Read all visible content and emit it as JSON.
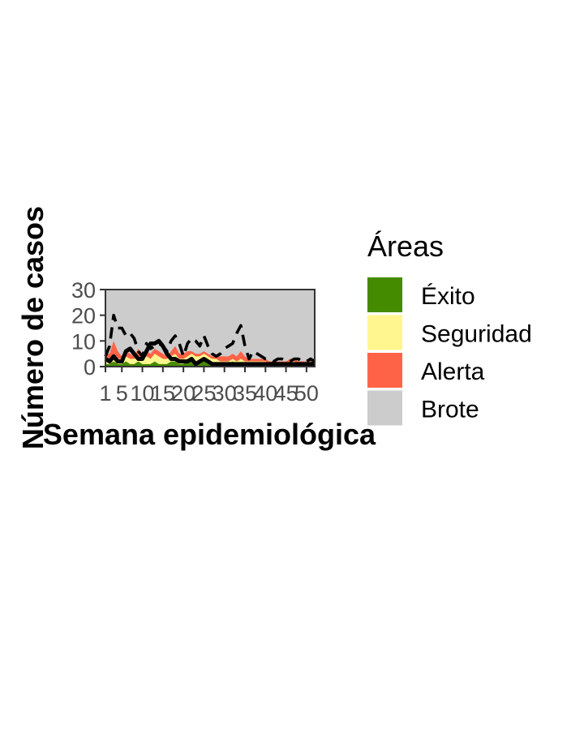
{
  "chart_data": {
    "type": "area",
    "xlabel": "Semana epidemiológica",
    "ylabel": "Número de casos",
    "xlim": [
      1,
      52
    ],
    "ylim": [
      0,
      30
    ],
    "x_ticks": [
      1,
      5,
      10,
      15,
      20,
      25,
      30,
      35,
      40,
      45,
      50
    ],
    "y_ticks": [
      0,
      10,
      20,
      30
    ],
    "legend": {
      "title": "Áreas",
      "position": "right",
      "entries": [
        {
          "label": "Éxito",
          "color": "#458B00"
        },
        {
          "label": "Seguridad",
          "color": "#FFF68F"
        },
        {
          "label": "Alerta",
          "color": "#FF6347"
        },
        {
          "label": "Brote",
          "color": "#CCCCCC"
        }
      ]
    },
    "x": [
      1,
      2,
      3,
      4,
      5,
      6,
      7,
      8,
      9,
      10,
      11,
      12,
      13,
      14,
      15,
      16,
      17,
      18,
      19,
      20,
      21,
      22,
      23,
      24,
      25,
      26,
      27,
      28,
      29,
      30,
      31,
      32,
      33,
      34,
      35,
      36,
      37,
      38,
      39,
      40,
      41,
      42,
      43,
      44,
      45,
      46,
      47,
      48,
      49,
      50,
      51,
      52
    ],
    "bands": {
      "exito": [
        1,
        1,
        2,
        1,
        1,
        2,
        1,
        1,
        2,
        1,
        1,
        1,
        2,
        1,
        1,
        1,
        2,
        2,
        1,
        1,
        3,
        2,
        1,
        2,
        3,
        2,
        1,
        1,
        1,
        1,
        1,
        2,
        1,
        1,
        1,
        1,
        1,
        1,
        1,
        1,
        1,
        1,
        1,
        1,
        1,
        1,
        1,
        1,
        1,
        1,
        2,
        2
      ],
      "seguridad": [
        3,
        3,
        4,
        3,
        3,
        4,
        3,
        3,
        4,
        3,
        4,
        3,
        5,
        4,
        3,
        3,
        4,
        5,
        3,
        3,
        4,
        5,
        4,
        4,
        5,
        4,
        3,
        3,
        2,
        2,
        2,
        3,
        2,
        3,
        2,
        2,
        2,
        2,
        2,
        2,
        1,
        1,
        1,
        1,
        1,
        2,
        2,
        1,
        1,
        1,
        2,
        2
      ],
      "alerta": [
        5,
        5,
        10,
        6,
        4,
        6,
        5,
        4,
        7,
        5,
        6,
        5,
        7,
        6,
        5,
        4,
        6,
        8,
        5,
        5,
        6,
        6,
        5,
        5,
        6,
        5,
        4,
        4,
        4,
        4,
        4,
        5,
        4,
        6,
        4,
        3,
        3,
        3,
        3,
        3,
        2,
        2,
        2,
        2,
        2,
        3,
        3,
        2,
        2,
        2,
        3,
        3
      ]
    },
    "series": [
      {
        "style": "dashed",
        "values": [
          4,
          8,
          20,
          15,
          15,
          12,
          13,
          11,
          6,
          4,
          9,
          7,
          8,
          9,
          8,
          6,
          10,
          12,
          9,
          4,
          9,
          11,
          10,
          8,
          12,
          8,
          5,
          4,
          5,
          7,
          8,
          9,
          13,
          16,
          8,
          3,
          6,
          5,
          4,
          3,
          3,
          2,
          3,
          3,
          2,
          2,
          3,
          3,
          2,
          2,
          3,
          2
        ]
      },
      {
        "style": "solid",
        "values": [
          3,
          2,
          4,
          2,
          2,
          6,
          7,
          5,
          3,
          3,
          6,
          9,
          9,
          10,
          8,
          5,
          3,
          3,
          2,
          2,
          2,
          3,
          1,
          2,
          3,
          2,
          1,
          1,
          1,
          1,
          1,
          1,
          1,
          1,
          1,
          1,
          1,
          1,
          1,
          1,
          1,
          1,
          1,
          1,
          1,
          1,
          1,
          1,
          1,
          1,
          1,
          1
        ]
      }
    ]
  }
}
